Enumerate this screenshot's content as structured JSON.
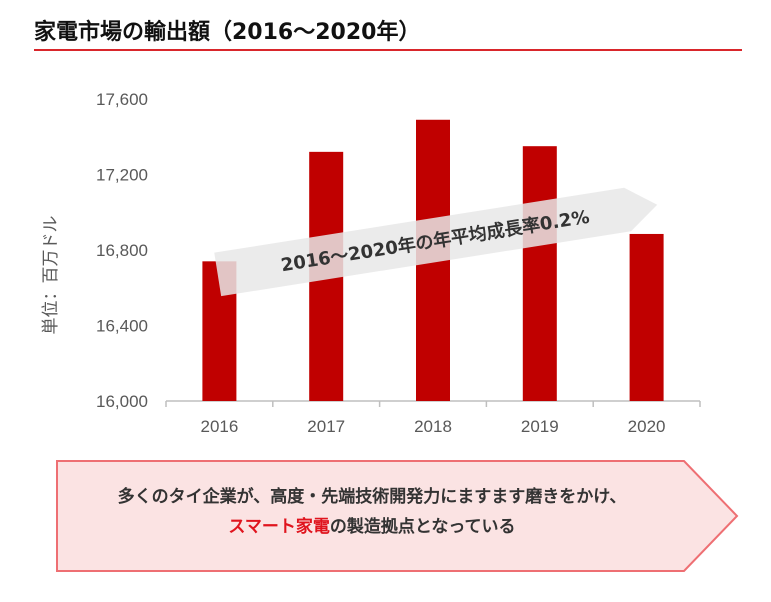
{
  "title": "家電市場の輸出額（2016〜2020年）",
  "colors": {
    "bar": "#c00000",
    "axis": "#bfbfbf",
    "title_rule": "#d9262b",
    "arrow_fill": "#e7e7e7",
    "callout_fill": "#fbe3e3",
    "callout_border": "#ee6f73",
    "accent_text": "#e0141e"
  },
  "chart_data": {
    "type": "bar",
    "categories": [
      "2016",
      "2017",
      "2018",
      "2019",
      "2020"
    ],
    "values": [
      16740,
      17320,
      17490,
      17350,
      16885
    ],
    "ylabel": "単位：百万ドル",
    "ylim": [
      16000,
      17600
    ],
    "yticks": [
      16000,
      16400,
      16800,
      17200,
      17600
    ],
    "ytick_labels": [
      "16,000",
      "16,400",
      "16,800",
      "17,200",
      "17,600"
    ],
    "grid": false,
    "annotation": "2016〜2020年の年平均成長率0.2%"
  },
  "callout": {
    "line1": "多くのタイ企業が、高度・先端技術開発力にますます磨きをかけ、",
    "line2_highlight": "スマート家電",
    "line2_rest": "の製造拠点となっている"
  }
}
